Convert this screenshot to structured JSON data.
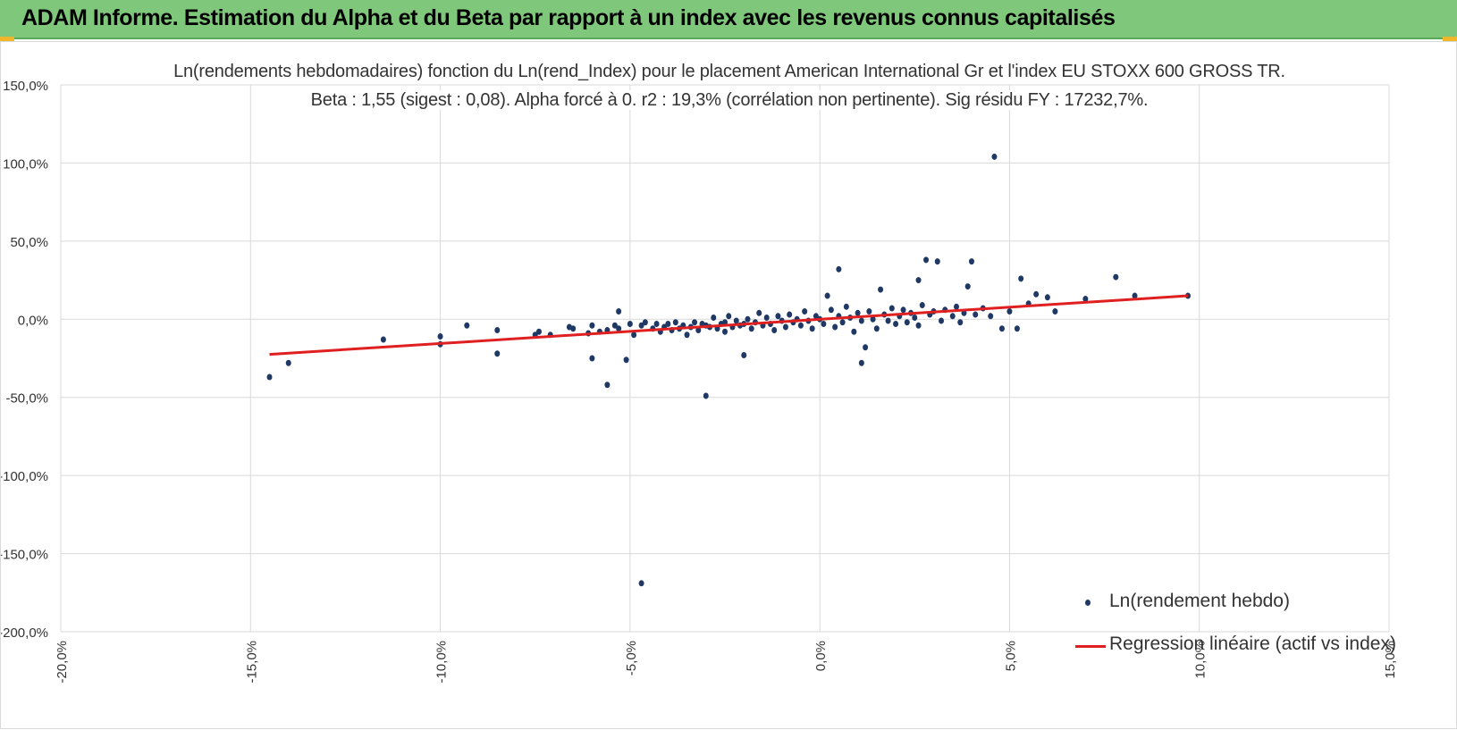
{
  "header": {
    "title": "ADAM Informe. Estimation du Alpha et du Beta par rapport à un index avec les revenus connus capitalisés"
  },
  "colors": {
    "header_bg": "#7fc77a",
    "marker": "#1f3864",
    "regression": "#e02020",
    "grid": "#d9d9d9"
  },
  "chart_data": {
    "type": "scatter",
    "title_line1": "Ln(rendements hebdomadaires) fonction du Ln(rend_Index) pour le placement American International Gr et l'index EU STOXX 600 GROSS TR.",
    "title_line2": "Beta : 1,55 (sigest : 0,08).  Alpha forcé à 0. r2 : 19,3% (corrélation non pertinente). Sig résidu FY : 17232,7%.",
    "xlim": [
      -0.2,
      0.15
    ],
    "ylim": [
      -2.0,
      1.5
    ],
    "xticks": [
      -0.2,
      -0.15,
      -0.1,
      -0.05,
      0.0,
      0.05,
      0.1,
      0.15
    ],
    "xtick_labels": [
      "-20,0%",
      "-15,0%",
      "-10,0%",
      "-5,0%",
      "0,0%",
      "5,0%",
      "10,0%",
      "15,0%"
    ],
    "yticks": [
      1.5,
      1.0,
      0.5,
      0.0,
      -0.5,
      -1.0,
      -1.5,
      -2.0
    ],
    "ytick_labels": [
      "150,0%",
      "100,0%",
      "50,0%",
      "0,0%",
      "-50,0%",
      "-100,0%",
      "-150,0%",
      "-200,0%"
    ],
    "grid": true,
    "legend_position": "bottom-right",
    "series": [
      {
        "name": "Ln(rendement hebdo)",
        "kind": "scatter",
        "points": [
          [
            -0.145,
            -0.37
          ],
          [
            -0.14,
            -0.28
          ],
          [
            -0.115,
            -0.13
          ],
          [
            -0.1,
            -0.11
          ],
          [
            -0.1,
            -0.16
          ],
          [
            -0.093,
            -0.04
          ],
          [
            -0.085,
            -0.07
          ],
          [
            -0.085,
            -0.22
          ],
          [
            -0.075,
            -0.1
          ],
          [
            -0.074,
            -0.08
          ],
          [
            -0.071,
            -0.1
          ],
          [
            -0.066,
            -0.05
          ],
          [
            -0.065,
            -0.06
          ],
          [
            -0.061,
            -0.09
          ],
          [
            -0.06,
            -0.04
          ],
          [
            -0.06,
            -0.25
          ],
          [
            -0.058,
            -0.08
          ],
          [
            -0.056,
            -0.07
          ],
          [
            -0.056,
            -0.42
          ],
          [
            -0.054,
            -0.04
          ],
          [
            -0.053,
            -0.06
          ],
          [
            -0.053,
            0.05
          ],
          [
            -0.051,
            -0.26
          ],
          [
            -0.05,
            -0.03
          ],
          [
            -0.049,
            -0.1
          ],
          [
            -0.047,
            -0.04
          ],
          [
            -0.047,
            -1.69
          ],
          [
            -0.046,
            -0.02
          ],
          [
            -0.044,
            -0.06
          ],
          [
            -0.043,
            -0.03
          ],
          [
            -0.042,
            -0.08
          ],
          [
            -0.041,
            -0.05
          ],
          [
            -0.04,
            -0.03
          ],
          [
            -0.039,
            -0.07
          ],
          [
            -0.038,
            -0.02
          ],
          [
            -0.037,
            -0.06
          ],
          [
            -0.036,
            -0.04
          ],
          [
            -0.035,
            -0.1
          ],
          [
            -0.034,
            -0.05
          ],
          [
            -0.033,
            -0.02
          ],
          [
            -0.032,
            -0.07
          ],
          [
            -0.031,
            -0.03
          ],
          [
            -0.03,
            -0.49
          ],
          [
            -0.03,
            -0.04
          ],
          [
            -0.029,
            -0.05
          ],
          [
            -0.028,
            0.01
          ],
          [
            -0.027,
            -0.06
          ],
          [
            -0.026,
            -0.03
          ],
          [
            -0.025,
            -0.02
          ],
          [
            -0.025,
            -0.08
          ],
          [
            -0.024,
            0.02
          ],
          [
            -0.023,
            -0.05
          ],
          [
            -0.022,
            -0.01
          ],
          [
            -0.021,
            -0.04
          ],
          [
            -0.02,
            -0.23
          ],
          [
            -0.02,
            -0.03
          ],
          [
            -0.019,
            0.0
          ],
          [
            -0.018,
            -0.06
          ],
          [
            -0.017,
            -0.02
          ],
          [
            -0.016,
            0.04
          ],
          [
            -0.015,
            -0.04
          ],
          [
            -0.014,
            0.01
          ],
          [
            -0.013,
            -0.03
          ],
          [
            -0.012,
            -0.07
          ],
          [
            -0.011,
            0.02
          ],
          [
            -0.01,
            -0.01
          ],
          [
            -0.009,
            -0.05
          ],
          [
            -0.008,
            0.03
          ],
          [
            -0.007,
            -0.02
          ],
          [
            -0.006,
            0.0
          ],
          [
            -0.005,
            -0.04
          ],
          [
            -0.004,
            0.05
          ],
          [
            -0.003,
            -0.01
          ],
          [
            -0.002,
            -0.06
          ],
          [
            -0.001,
            0.02
          ],
          [
            0.0,
            0.0
          ],
          [
            0.001,
            -0.03
          ],
          [
            0.002,
            0.15
          ],
          [
            0.003,
            0.06
          ],
          [
            0.004,
            -0.05
          ],
          [
            0.005,
            0.02
          ],
          [
            0.005,
            0.32
          ],
          [
            0.006,
            -0.02
          ],
          [
            0.007,
            0.08
          ],
          [
            0.008,
            0.01
          ],
          [
            0.009,
            -0.08
          ],
          [
            0.01,
            0.04
          ],
          [
            0.011,
            -0.01
          ],
          [
            0.011,
            -0.28
          ],
          [
            0.012,
            -0.18
          ],
          [
            0.013,
            0.05
          ],
          [
            0.014,
            0.0
          ],
          [
            0.015,
            -0.06
          ],
          [
            0.016,
            0.19
          ],
          [
            0.017,
            0.03
          ],
          [
            0.018,
            -0.01
          ],
          [
            0.019,
            0.07
          ],
          [
            0.02,
            -0.03
          ],
          [
            0.021,
            0.02
          ],
          [
            0.022,
            0.06
          ],
          [
            0.023,
            -0.02
          ],
          [
            0.024,
            0.04
          ],
          [
            0.025,
            0.01
          ],
          [
            0.026,
            0.25
          ],
          [
            0.026,
            -0.04
          ],
          [
            0.027,
            0.09
          ],
          [
            0.028,
            0.38
          ],
          [
            0.029,
            0.03
          ],
          [
            0.03,
            0.05
          ],
          [
            0.031,
            0.37
          ],
          [
            0.032,
            -0.01
          ],
          [
            0.033,
            0.06
          ],
          [
            0.035,
            0.02
          ],
          [
            0.036,
            0.08
          ],
          [
            0.037,
            -0.02
          ],
          [
            0.038,
            0.04
          ],
          [
            0.039,
            0.21
          ],
          [
            0.04,
            0.37
          ],
          [
            0.041,
            0.03
          ],
          [
            0.043,
            0.07
          ],
          [
            0.045,
            0.02
          ],
          [
            0.046,
            1.04
          ],
          [
            0.048,
            -0.06
          ],
          [
            0.05,
            0.05
          ],
          [
            0.052,
            -0.06
          ],
          [
            0.053,
            0.26
          ],
          [
            0.055,
            0.1
          ],
          [
            0.057,
            0.16
          ],
          [
            0.06,
            0.14
          ],
          [
            0.062,
            0.05
          ],
          [
            0.07,
            0.13
          ],
          [
            0.078,
            0.27
          ],
          [
            0.083,
            0.15
          ],
          [
            0.097,
            0.15
          ]
        ]
      },
      {
        "name": "Regression linéaire (actif vs index)",
        "kind": "line",
        "points": [
          [
            -0.145,
            -0.225
          ],
          [
            0.097,
            0.15
          ]
        ]
      }
    ]
  }
}
